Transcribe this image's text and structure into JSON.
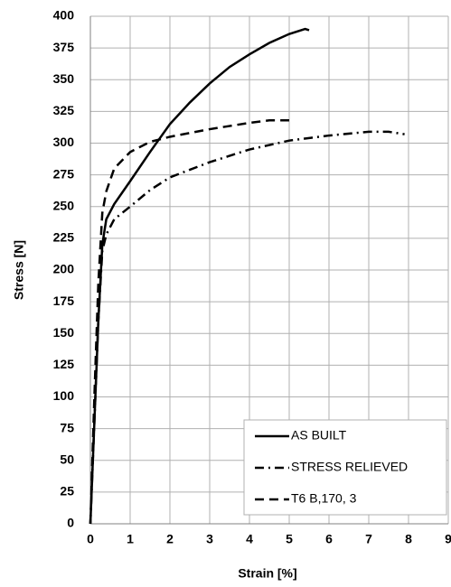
{
  "chart_data": {
    "type": "line",
    "xlabel": "Strain [%]",
    "ylabel": "Stress [N]",
    "xlim": [
      0,
      9
    ],
    "xticks": [
      0,
      1,
      2,
      3,
      4,
      5,
      6,
      7,
      8,
      9
    ],
    "ylim": [
      0,
      400
    ],
    "yticks": [
      0,
      25,
      50,
      75,
      100,
      125,
      150,
      175,
      200,
      225,
      250,
      275,
      300,
      325,
      350,
      375,
      400
    ],
    "grid": true,
    "legend": "lower right",
    "series": [
      {
        "name": "AS BUILT",
        "color": "#000000",
        "style": "solid",
        "x": [
          0,
          0.1,
          0.2,
          0.3,
          0.4,
          0.6,
          1,
          1.5,
          2,
          2.5,
          3,
          3.5,
          4,
          4.5,
          5,
          5.4,
          5.5
        ],
        "values": [
          0,
          80,
          160,
          220,
          240,
          252,
          270,
          293,
          315,
          332,
          347,
          360,
          370,
          379,
          386,
          390,
          389
        ]
      },
      {
        "name": "STRESS RELIEVED",
        "color": "#000000",
        "style": "dash-dot",
        "x": [
          0,
          0.1,
          0.2,
          0.3,
          0.4,
          0.6,
          1,
          1.5,
          2,
          3,
          4,
          5,
          6,
          7,
          7.5,
          7.9
        ],
        "values": [
          0,
          80,
          160,
          215,
          228,
          240,
          250,
          263,
          273,
          285,
          295,
          302,
          306,
          309,
          309,
          307
        ]
      },
      {
        "name": "T6 B,170, 3",
        "color": "#000000",
        "style": "dash",
        "x": [
          0,
          0.1,
          0.2,
          0.3,
          0.4,
          0.6,
          1,
          1.5,
          2,
          3,
          4,
          4.5,
          5
        ],
        "values": [
          0,
          100,
          190,
          245,
          262,
          280,
          293,
          301,
          305,
          311,
          316,
          318,
          318
        ]
      }
    ]
  }
}
